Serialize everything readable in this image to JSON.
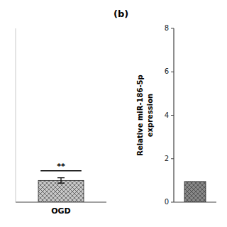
{
  "chart_data": [
    {
      "type": "bar",
      "categories": [
        "OGD"
      ],
      "values": [
        1.0
      ],
      "errors": [
        0.12
      ],
      "color": "#c8c8c8",
      "ylim": [
        0,
        8
      ],
      "annotation": "**",
      "tick_labels": "x"
    },
    {
      "type": "bar",
      "title": "(b)",
      "ylabel": "Relative miR-186-5p\nexpression",
      "categories": [
        null
      ],
      "values": [
        0.95
      ],
      "color": "#888888",
      "ylim": [
        0,
        8
      ],
      "yticks": [
        0,
        2,
        4,
        6,
        8
      ],
      "tick_labels": "y"
    }
  ]
}
